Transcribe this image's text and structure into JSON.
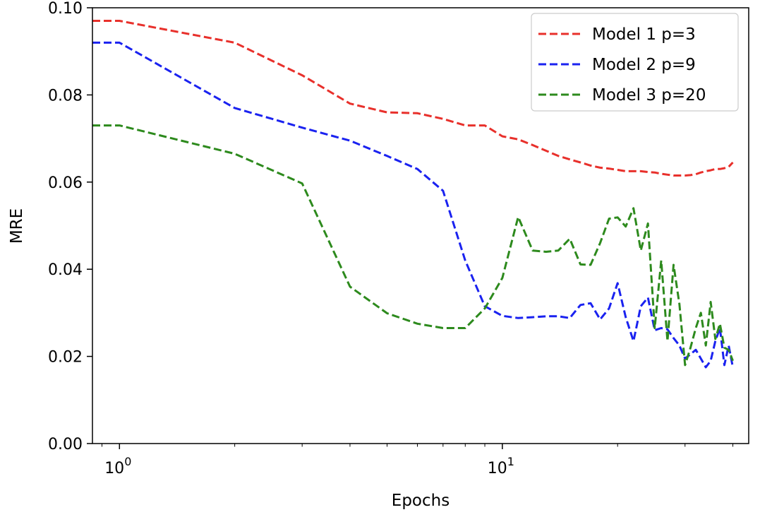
{
  "chart_data": {
    "type": "line",
    "title": "",
    "xlabel": "Epochs",
    "ylabel": "MRE",
    "xscale": "log",
    "xlim": [
      0.85,
      44
    ],
    "ylim": [
      0.0,
      0.1
    ],
    "grid": false,
    "legend_position": "top-right",
    "y_ticks": [
      "0.00",
      "0.02",
      "0.04",
      "0.06",
      "0.08",
      "0.10"
    ],
    "x_ticks": [
      {
        "value": 1,
        "base": "10",
        "exp": "0"
      },
      {
        "value": 10,
        "base": "10",
        "exp": "1"
      }
    ],
    "series": [
      {
        "name": "Model 1 p=3",
        "color": "#e8302b",
        "x": [
          0.85,
          1,
          2,
          3,
          4,
          5,
          6,
          7,
          8,
          9,
          10,
          11,
          12,
          13,
          14,
          15,
          16,
          17,
          18,
          19,
          20,
          21,
          22,
          23,
          24,
          25,
          26,
          27,
          28,
          29,
          30,
          31,
          32,
          33,
          34,
          35,
          36,
          37,
          38,
          39,
          40
        ],
        "values": [
          0.097,
          0.097,
          0.092,
          0.0845,
          0.078,
          0.076,
          0.0758,
          0.0745,
          0.073,
          0.073,
          0.0705,
          0.0698,
          0.0685,
          0.0672,
          0.066,
          0.0652,
          0.0645,
          0.0638,
          0.0633,
          0.0631,
          0.0628,
          0.0625,
          0.0625,
          0.0625,
          0.0623,
          0.0622,
          0.0619,
          0.0617,
          0.0615,
          0.0615,
          0.0615,
          0.0616,
          0.0618,
          0.0622,
          0.0625,
          0.0627,
          0.063,
          0.063,
          0.0632,
          0.0635,
          0.0645
        ]
      },
      {
        "name": "Model 2 p=9",
        "color": "#1a22f0",
        "x": [
          0.85,
          1,
          2,
          3,
          4,
          5,
          6,
          7,
          8,
          9,
          10,
          11,
          12,
          13,
          14,
          15,
          16,
          17,
          18,
          19,
          20,
          21,
          22,
          23,
          24,
          25,
          26,
          27,
          28,
          29,
          30,
          31,
          32,
          33,
          34,
          35,
          36,
          37,
          38,
          39,
          40
        ],
        "values": [
          0.092,
          0.092,
          0.077,
          0.0725,
          0.0695,
          0.066,
          0.063,
          0.058,
          0.042,
          0.0315,
          0.0293,
          0.0288,
          0.029,
          0.0292,
          0.0292,
          0.0288,
          0.0318,
          0.0322,
          0.0285,
          0.031,
          0.0368,
          0.029,
          0.0235,
          0.0315,
          0.0335,
          0.026,
          0.0265,
          0.0262,
          0.0242,
          0.0225,
          0.0195,
          0.0205,
          0.0215,
          0.0195,
          0.0175,
          0.019,
          0.0235,
          0.0265,
          0.018,
          0.0225,
          0.0175
        ]
      },
      {
        "name": "Model 3 p=20",
        "color": "#2d8a1d",
        "x": [
          0.85,
          1,
          2,
          3,
          4,
          5,
          6,
          7,
          8,
          9,
          10,
          11,
          12,
          13,
          14,
          15,
          16,
          17,
          18,
          19,
          20,
          21,
          22,
          23,
          24,
          25,
          26,
          27,
          28,
          29,
          30,
          31,
          32,
          33,
          34,
          35,
          36,
          37,
          38,
          39,
          40
        ],
        "values": [
          0.073,
          0.073,
          0.0665,
          0.0597,
          0.036,
          0.0299,
          0.0275,
          0.0265,
          0.0265,
          0.031,
          0.038,
          0.052,
          0.0443,
          0.044,
          0.0443,
          0.047,
          0.0411,
          0.041,
          0.046,
          0.0516,
          0.0519,
          0.0498,
          0.054,
          0.0443,
          0.0505,
          0.0265,
          0.042,
          0.0235,
          0.041,
          0.032,
          0.018,
          0.022,
          0.0265,
          0.03,
          0.0225,
          0.0325,
          0.024,
          0.0275,
          0.022,
          0.0215,
          0.019
        ]
      }
    ]
  }
}
